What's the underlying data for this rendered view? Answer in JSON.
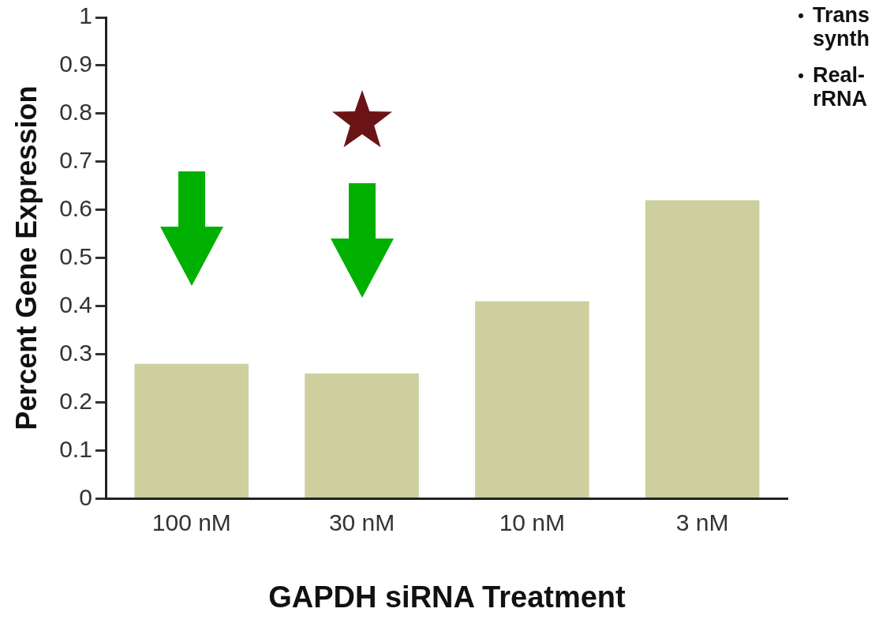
{
  "chart_data": {
    "type": "bar",
    "xlabel": "GAPDH siRNA Treatment",
    "ylabel": "Percent Gene Expression",
    "categories": [
      "100 nM",
      "30 nM",
      "10 nM",
      "3 nM"
    ],
    "values": [
      0.28,
      0.26,
      0.41,
      0.62
    ],
    "color": "#cdcf9f",
    "ylim": [
      0,
      1
    ],
    "yticks": [
      0,
      0.1,
      0.2,
      0.3,
      0.4,
      0.5,
      0.6,
      0.7,
      0.8,
      0.9,
      1
    ],
    "grid": false,
    "annotations": [
      "Trans synth",
      "Real- rRNA"
    ]
  }
}
